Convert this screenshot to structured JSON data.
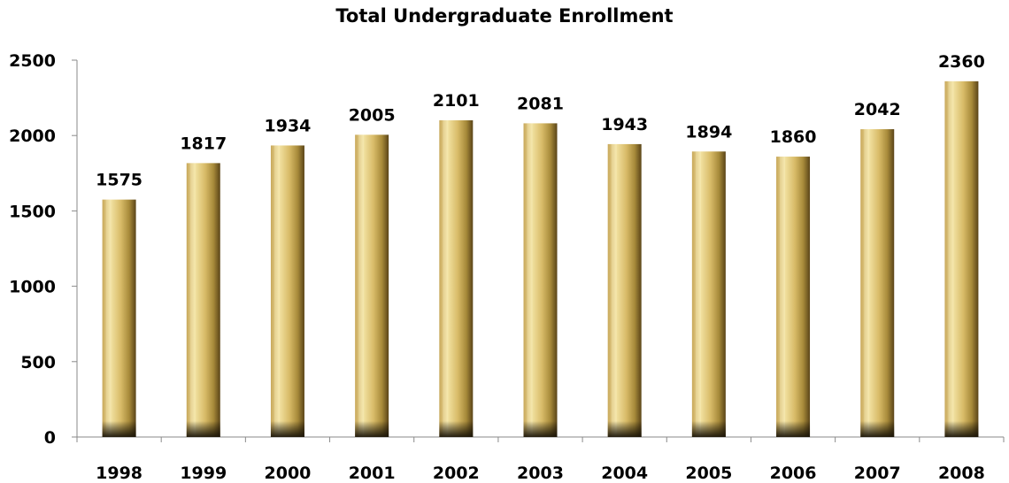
{
  "chart_data": {
    "type": "bar",
    "title": "Total Undergraduate Enrollment",
    "xlabel": "",
    "ylabel": "",
    "categories": [
      "1998",
      "1999",
      "2000",
      "2001",
      "2002",
      "2003",
      "2004",
      "2005",
      "2006",
      "2007",
      "2008"
    ],
    "values": [
      1575,
      1817,
      1934,
      2005,
      2101,
      2081,
      1943,
      1894,
      1860,
      2042,
      2360
    ],
    "ylim": [
      0,
      2500
    ],
    "yticks": [
      0,
      500,
      1000,
      1500,
      2000,
      2500
    ],
    "grid": false,
    "legend": "none",
    "data_labels": true,
    "colors": {
      "bar_light": "#f3e3a0",
      "bar_mid": "#cfae58",
      "bar_dark": "#7a5f22",
      "bar_base": "#2a2210"
    }
  }
}
